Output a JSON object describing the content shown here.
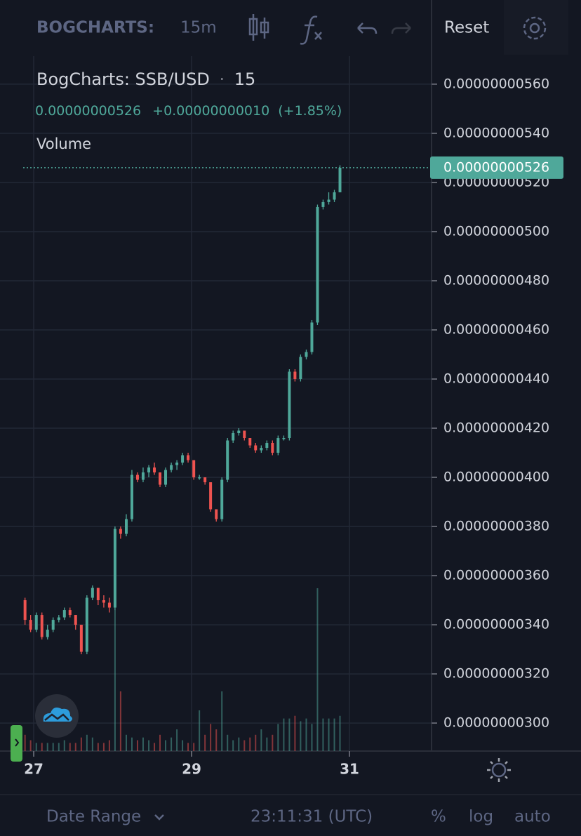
{
  "toolbar": {
    "brand": "BOGCHARTS:",
    "interval": "15m",
    "reset": "Reset"
  },
  "header": {
    "title": "BogCharts: SSB/USD",
    "separator": "·",
    "interval": "15",
    "price": "0.00000000526",
    "change": "+0.00000000010",
    "change_pct": "(+1.85%)",
    "volume_label": "Volume"
  },
  "footer": {
    "date_range": "Date Range",
    "clock": "23:11:31 (UTC)",
    "percent": "%",
    "log": "log",
    "auto": "auto"
  },
  "chart_data": {
    "type": "candlestick",
    "up_color": "#4fa89a",
    "down_color": "#ef5350",
    "grid": true,
    "xlim": [
      26.573,
      32.04
    ],
    "xticks": [
      27,
      29,
      31
    ],
    "ylim": [
      2.886e-09,
      5.714e-09
    ],
    "yticks": [
      {
        "value": 3e-09,
        "label": "0.00000000300"
      },
      {
        "value": 3.2e-09,
        "label": "0.00000000320"
      },
      {
        "value": 3.4e-09,
        "label": "0.00000000340"
      },
      {
        "value": 3.6e-09,
        "label": "0.00000000360"
      },
      {
        "value": 3.8e-09,
        "label": "0.00000000380"
      },
      {
        "value": 4e-09,
        "label": "0.00000000400"
      },
      {
        "value": 4.2e-09,
        "label": "0.00000000420"
      },
      {
        "value": 4.4e-09,
        "label": "0.00000000440"
      },
      {
        "value": 4.6e-09,
        "label": "0.00000000460"
      },
      {
        "value": 4.8e-09,
        "label": "0.00000000480"
      },
      {
        "value": 5e-09,
        "label": "0.00000000500"
      },
      {
        "value": 5.2e-09,
        "label": "0.00000000520"
      },
      {
        "value": 5.4e-09,
        "label": "0.00000000540"
      },
      {
        "value": 5.6e-09,
        "label": "0.00000000560"
      }
    ],
    "last_price": {
      "value": 5.26e-09,
      "label": "0.00000000526"
    },
    "x": [
      26.89,
      26.961,
      27.033,
      27.104,
      27.175,
      27.246,
      27.318,
      27.389,
      27.46,
      27.531,
      27.603,
      27.674,
      27.745,
      27.816,
      27.888,
      27.959,
      28.03,
      28.101,
      28.173,
      28.244,
      28.315,
      28.386,
      28.458,
      28.529,
      28.6,
      28.671,
      28.743,
      28.814,
      28.885,
      28.956,
      29.028,
      29.099,
      29.17,
      29.241,
      29.313,
      29.384,
      29.455,
      29.526,
      29.598,
      29.669,
      29.74,
      29.811,
      29.883,
      29.954,
      30.025,
      30.096,
      30.168,
      30.239,
      30.31,
      30.381,
      30.453,
      30.524,
      30.595,
      30.666,
      30.738,
      30.809,
      30.88
    ],
    "open": [
      3.5e-09,
      3.42e-09,
      3.38e-09,
      3.44e-09,
      3.35e-09,
      3.38e-09,
      3.42e-09,
      3.43e-09,
      3.46e-09,
      3.44e-09,
      3.4e-09,
      3.29e-09,
      3.51e-09,
      3.55e-09,
      3.5e-09,
      3.49e-09,
      3.47e-09,
      3.79e-09,
      3.77e-09,
      3.83e-09,
      4.01e-09,
      3.99e-09,
      4.02e-09,
      4.04e-09,
      4.02e-09,
      3.97e-09,
      4.03e-09,
      4.05e-09,
      4.06e-09,
      4.09e-09,
      4.07e-09,
      4e-09,
      4e-09,
      3.98e-09,
      3.87e-09,
      3.83e-09,
      3.99e-09,
      4.15e-09,
      4.18e-09,
      4.19e-09,
      4.16e-09,
      4.13e-09,
      4.11e-09,
      4.12e-09,
      4.14e-09,
      4.1e-09,
      4.16e-09,
      4.16e-09,
      4.43e-09,
      4.4e-09,
      4.49e-09,
      4.51e-09,
      4.63e-09,
      5.1e-09,
      5.12e-09,
      5.13e-09,
      5.16e-09
    ],
    "high": [
      3.51e-09,
      3.44e-09,
      3.45e-09,
      3.45e-09,
      3.4e-09,
      3.43e-09,
      3.44e-09,
      3.47e-09,
      3.47e-09,
      3.44e-09,
      3.4e-09,
      3.52e-09,
      3.56e-09,
      3.55e-09,
      3.52e-09,
      3.51e-09,
      3.8e-09,
      3.8e-09,
      3.85e-09,
      4.03e-09,
      4.02e-09,
      4.04e-09,
      4.05e-09,
      4.06e-09,
      4.02e-09,
      4.04e-09,
      4.06e-09,
      4.07e-09,
      4.1e-09,
      4.1e-09,
      4.07e-09,
      4.01e-09,
      4e-09,
      3.98e-09,
      3.87e-09,
      4e-09,
      4.16e-09,
      4.19e-09,
      4.2e-09,
      4.19e-09,
      4.16e-09,
      4.14e-09,
      4.13e-09,
      4.15e-09,
      4.15e-09,
      4.17e-09,
      4.17e-09,
      4.44e-09,
      4.44e-09,
      4.5e-09,
      4.52e-09,
      4.64e-09,
      5.11e-09,
      5.13e-09,
      5.16e-09,
      5.17e-09,
      5.27e-09
    ],
    "low": [
      3.4e-09,
      3.37e-09,
      3.37e-09,
      3.34e-09,
      3.34e-09,
      3.37e-09,
      3.41e-09,
      3.42e-09,
      3.43e-09,
      3.38e-09,
      3.28e-09,
      3.28e-09,
      3.5e-09,
      3.48e-09,
      3.47e-09,
      3.45e-09,
      3.46e-09,
      3.75e-09,
      3.76e-09,
      3.82e-09,
      3.98e-09,
      3.98e-09,
      4e-09,
      4.01e-09,
      3.96e-09,
      3.96e-09,
      4.02e-09,
      4.03e-09,
      4.05e-09,
      4.06e-09,
      3.99e-09,
      3.99e-09,
      3.97e-09,
      3.86e-09,
      3.82e-09,
      3.82e-09,
      3.98e-09,
      4.14e-09,
      4.17e-09,
      4.15e-09,
      4.12e-09,
      4.1e-09,
      4.1e-09,
      4.11e-09,
      4.09e-09,
      4.09e-09,
      4.15e-09,
      4.15e-09,
      4.39e-09,
      4.39e-09,
      4.48e-09,
      4.5e-09,
      4.62e-09,
      5.09e-09,
      5.11e-09,
      5.12e-09,
      5.16e-09
    ],
    "close": [
      3.42e-09,
      3.38e-09,
      3.44e-09,
      3.35e-09,
      3.38e-09,
      3.42e-09,
      3.43e-09,
      3.46e-09,
      3.44e-09,
      3.4e-09,
      3.29e-09,
      3.51e-09,
      3.55e-09,
      3.5e-09,
      3.49e-09,
      3.47e-09,
      3.79e-09,
      3.77e-09,
      3.83e-09,
      4.01e-09,
      3.99e-09,
      4.02e-09,
      4.04e-09,
      4.02e-09,
      3.97e-09,
      4.03e-09,
      4.05e-09,
      4.06e-09,
      4.09e-09,
      4.07e-09,
      4e-09,
      4e-09,
      3.98e-09,
      3.87e-09,
      3.83e-09,
      3.99e-09,
      4.15e-09,
      4.18e-09,
      4.19e-09,
      4.16e-09,
      4.13e-09,
      4.11e-09,
      4.12e-09,
      4.14e-09,
      4.1e-09,
      4.16e-09,
      4.16e-09,
      4.43e-09,
      4.4e-09,
      4.49e-09,
      4.51e-09,
      4.63e-09,
      5.1e-09,
      5.12e-09,
      5.13e-09,
      5.16e-09,
      5.26e-09
    ],
    "volume": [
      6,
      4,
      3,
      3,
      3,
      3,
      3,
      4,
      3,
      3,
      5,
      6,
      5,
      3,
      3,
      4,
      52,
      22,
      6,
      5,
      4,
      5,
      4,
      3,
      6,
      4,
      5,
      8,
      4,
      3,
      3,
      15,
      6,
      10,
      8,
      22,
      6,
      4,
      5,
      4,
      5,
      6,
      8,
      5,
      6,
      10,
      12,
      12,
      13,
      11,
      12,
      10,
      60,
      12,
      12,
      12,
      13
    ]
  }
}
